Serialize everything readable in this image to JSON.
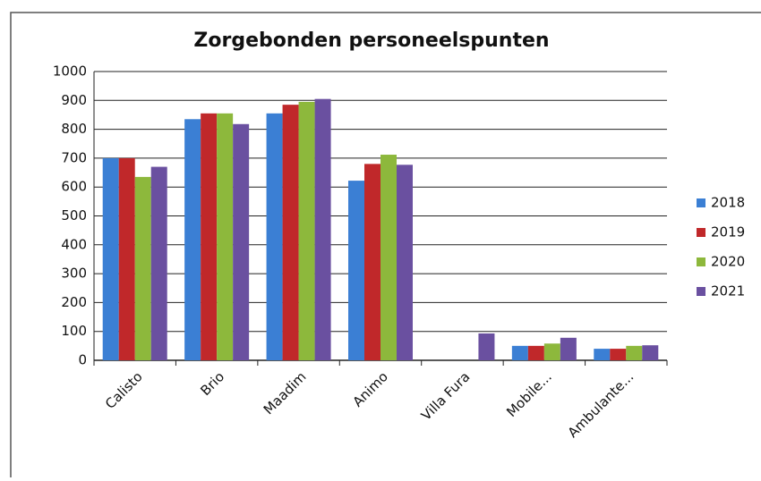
{
  "chart_data": {
    "type": "bar",
    "title": "Zorgebonden personeelspunten",
    "categories": [
      "Calisto",
      "Brio",
      "Maadim",
      "Animo",
      "Villa Fura",
      "Mobile...",
      "Ambulante..."
    ],
    "series": [
      {
        "name": "2018",
        "color": "#3b7fd4",
        "values": [
          700,
          835,
          855,
          622,
          null,
          50,
          40
        ]
      },
      {
        "name": "2019",
        "color": "#c0282a",
        "values": [
          700,
          855,
          885,
          680,
          null,
          50,
          40
        ]
      },
      {
        "name": "2020",
        "color": "#8db83c",
        "values": [
          635,
          855,
          895,
          712,
          null,
          58,
          50
        ]
      },
      {
        "name": "2021",
        "color": "#6a50a0",
        "values": [
          670,
          818,
          905,
          677,
          93,
          78,
          52
        ]
      }
    ],
    "ylim": [
      0,
      1000
    ],
    "yticks": [
      0,
      100,
      200,
      300,
      400,
      500,
      600,
      700,
      800,
      900,
      1000
    ],
    "grid": true,
    "legend": "right"
  }
}
